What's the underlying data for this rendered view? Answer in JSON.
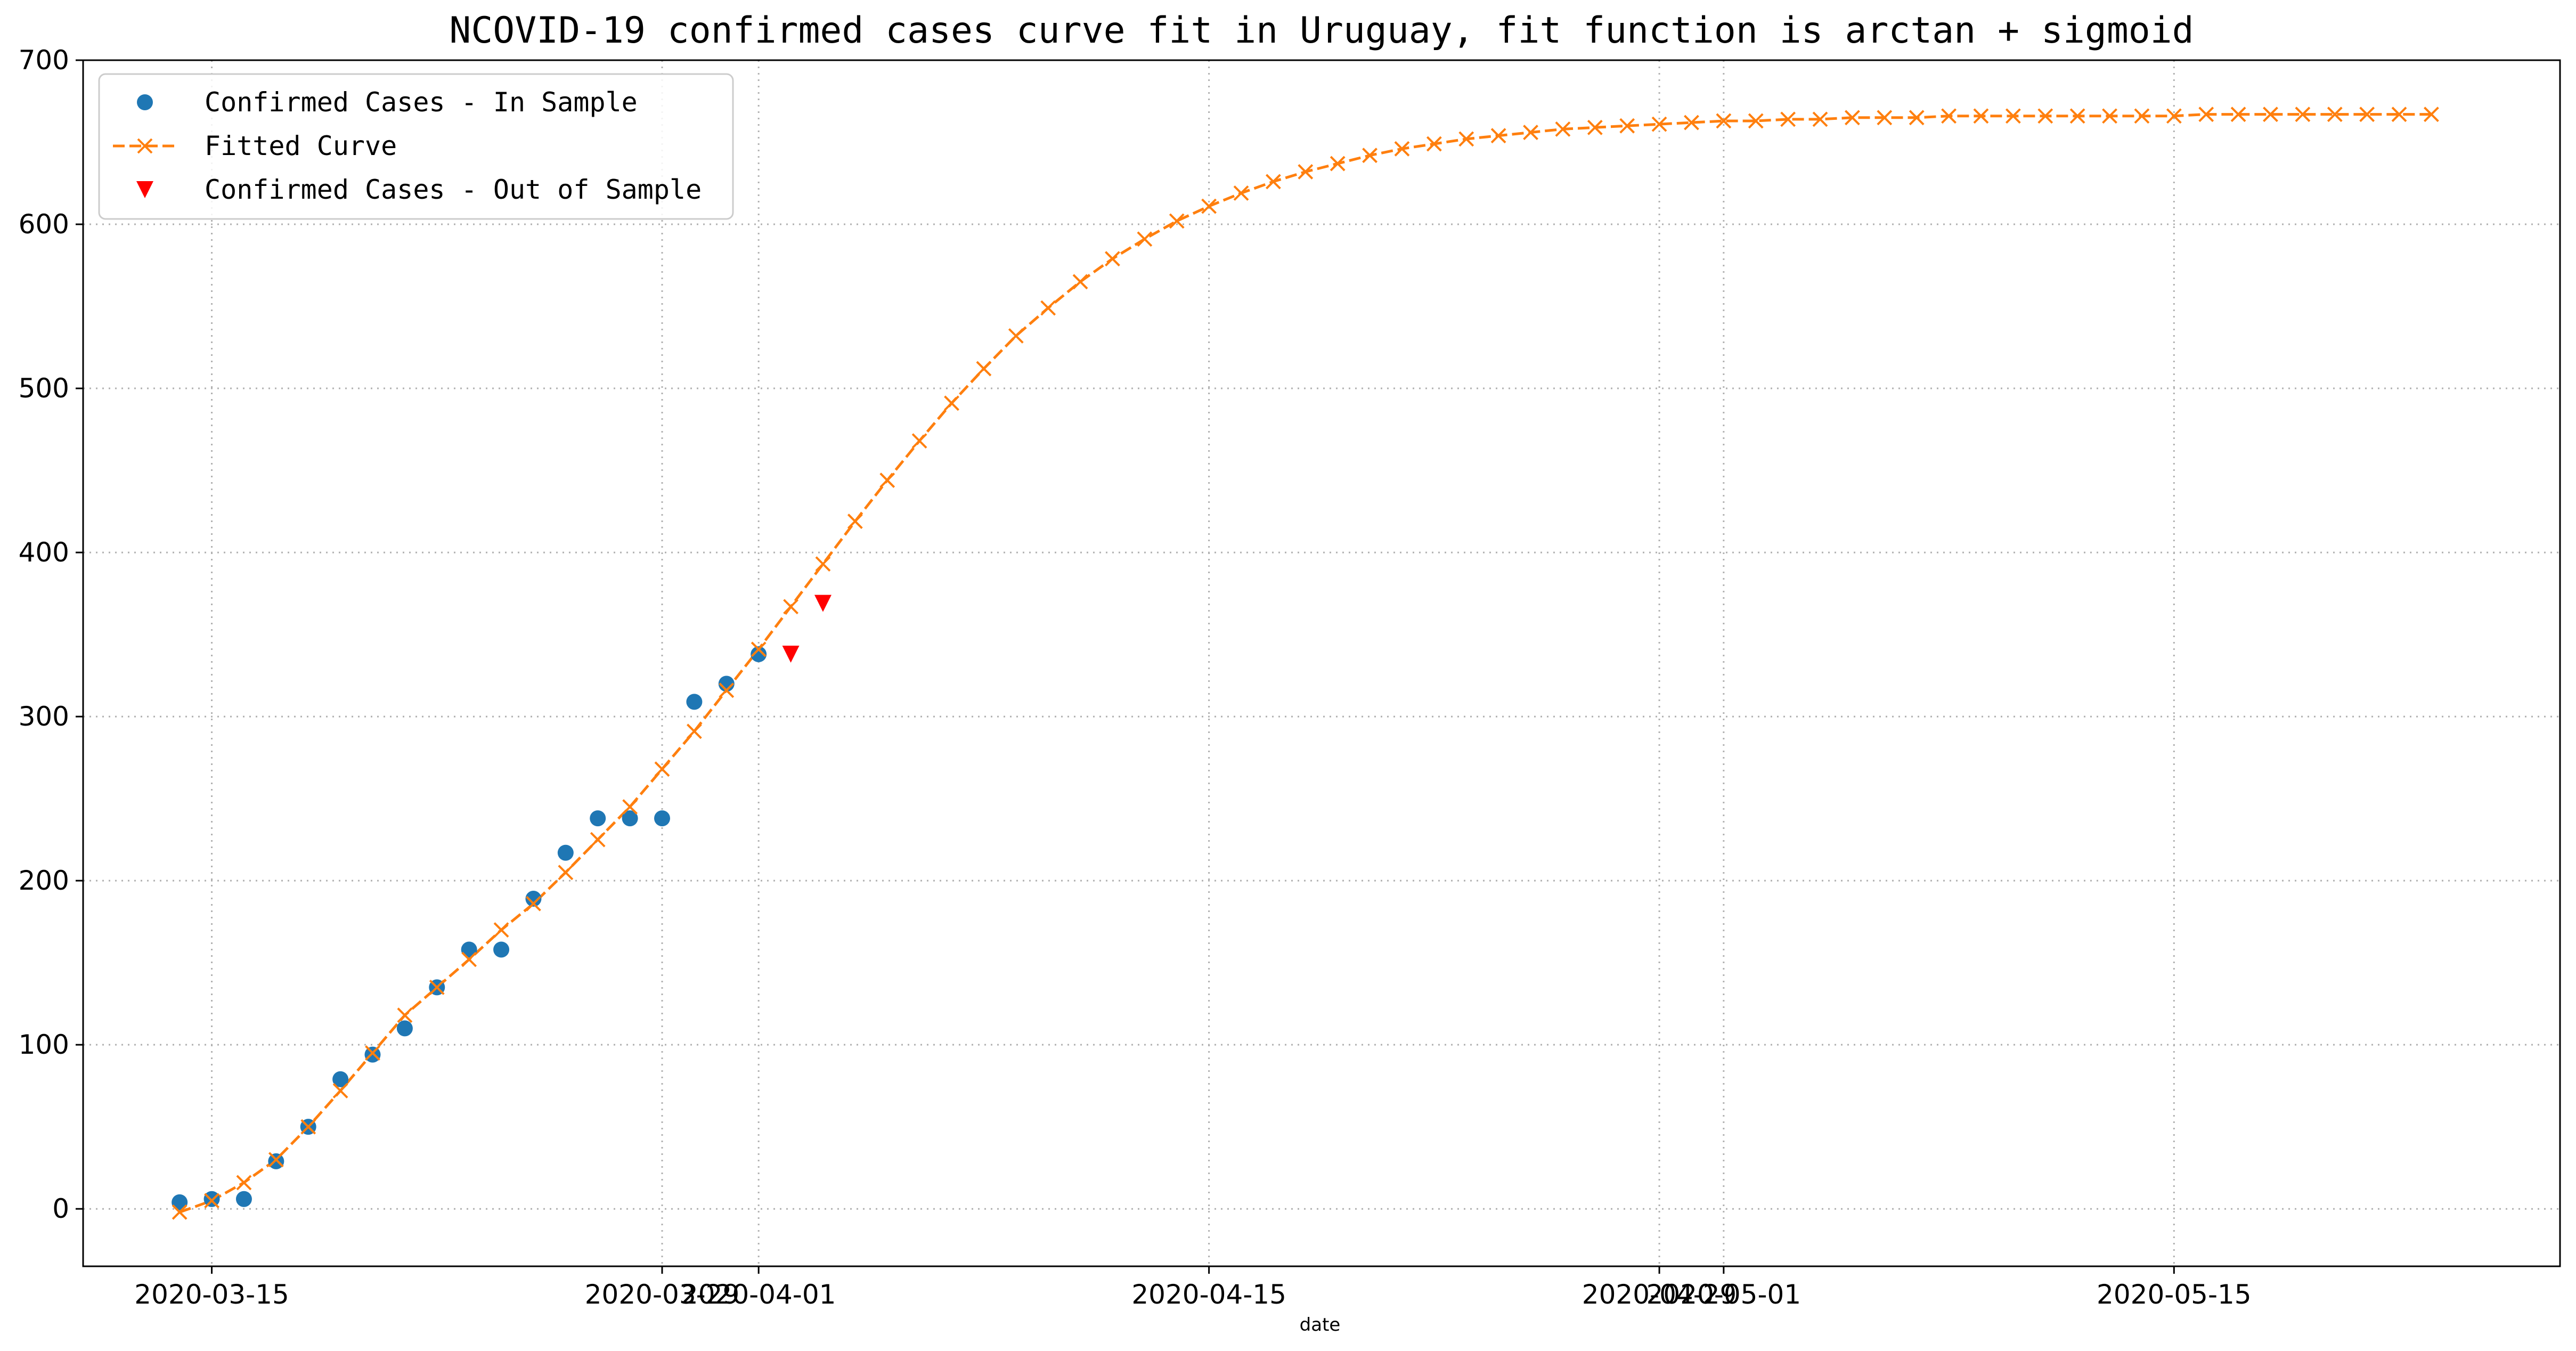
{
  "chart_data": {
    "type": "line",
    "title": "NCOVID-19 confirmed cases curve fit in Uruguay, fit function is arctan + sigmoid",
    "xlabel": "date",
    "ylabel": "",
    "x_axis_type": "date",
    "xlim": [
      "2020-03-11",
      "2020-05-27"
    ],
    "ylim": [
      -35,
      700
    ],
    "x_ticks": [
      "2020-03-15",
      "2020-03-29",
      "2020-04-01",
      "2020-04-15",
      "2020-04-29",
      "2020-05-01",
      "2020-05-15"
    ],
    "y_ticks": [
      0,
      100,
      200,
      300,
      400,
      500,
      600,
      700
    ],
    "grid": true,
    "legend_position": "top-left",
    "series": [
      {
        "name": "Confirmed Cases - In Sample",
        "style": "scatter",
        "marker": "circle",
        "color": "#1f77b4",
        "x": [
          "2020-03-14",
          "2020-03-15",
          "2020-03-16",
          "2020-03-17",
          "2020-03-18",
          "2020-03-19",
          "2020-03-20",
          "2020-03-21",
          "2020-03-22",
          "2020-03-23",
          "2020-03-24",
          "2020-03-25",
          "2020-03-26",
          "2020-03-27",
          "2020-03-28",
          "2020-03-29",
          "2020-03-30",
          "2020-03-31",
          "2020-04-01"
        ],
        "y": [
          4,
          6,
          6,
          29,
          50,
          79,
          94,
          110,
          135,
          158,
          158,
          189,
          217,
          238,
          238,
          238,
          309,
          320,
          338
        ]
      },
      {
        "name": "Fitted Curve",
        "style": "dashed-line",
        "marker": "x",
        "color": "#ff7f0e",
        "x": [
          "2020-03-14",
          "2020-03-15",
          "2020-03-16",
          "2020-03-17",
          "2020-03-18",
          "2020-03-19",
          "2020-03-20",
          "2020-03-21",
          "2020-03-22",
          "2020-03-23",
          "2020-03-24",
          "2020-03-25",
          "2020-03-26",
          "2020-03-27",
          "2020-03-28",
          "2020-03-29",
          "2020-03-30",
          "2020-03-31",
          "2020-04-01",
          "2020-04-02",
          "2020-04-03",
          "2020-04-04",
          "2020-04-05",
          "2020-04-06",
          "2020-04-07",
          "2020-04-08",
          "2020-04-09",
          "2020-04-10",
          "2020-04-11",
          "2020-04-12",
          "2020-04-13",
          "2020-04-14",
          "2020-04-15",
          "2020-04-16",
          "2020-04-17",
          "2020-04-18",
          "2020-04-19",
          "2020-04-20",
          "2020-04-21",
          "2020-04-22",
          "2020-04-23",
          "2020-04-24",
          "2020-04-25",
          "2020-04-26",
          "2020-04-27",
          "2020-04-28",
          "2020-04-29",
          "2020-04-30",
          "2020-05-01",
          "2020-05-02",
          "2020-05-03",
          "2020-05-04",
          "2020-05-05",
          "2020-05-06",
          "2020-05-07",
          "2020-05-08",
          "2020-05-09",
          "2020-05-10",
          "2020-05-11",
          "2020-05-12",
          "2020-05-13",
          "2020-05-14",
          "2020-05-15",
          "2020-05-16",
          "2020-05-17",
          "2020-05-18",
          "2020-05-19",
          "2020-05-20",
          "2020-05-21",
          "2020-05-22",
          "2020-05-23"
        ],
        "y": [
          -2,
          5,
          16,
          30,
          50,
          72,
          95,
          118,
          135,
          152,
          170,
          186,
          205,
          225,
          245,
          268,
          291,
          316,
          341,
          367,
          393,
          419,
          444,
          468,
          491,
          512,
          532,
          549,
          565,
          579,
          591,
          602,
          611,
          619,
          626,
          632,
          637,
          642,
          646,
          649,
          652,
          654,
          656,
          658,
          659,
          660,
          661,
          662,
          663,
          663,
          664,
          664,
          665,
          665,
          665,
          666,
          666,
          666,
          666,
          666,
          666,
          666,
          666,
          667,
          667,
          667,
          667,
          667,
          667,
          667,
          667
        ]
      },
      {
        "name": "Confirmed Cases - Out of Sample",
        "style": "scatter",
        "marker": "triangle-down",
        "color": "#ff0000",
        "x": [
          "2020-04-02",
          "2020-04-03"
        ],
        "y": [
          338,
          369
        ]
      }
    ]
  }
}
